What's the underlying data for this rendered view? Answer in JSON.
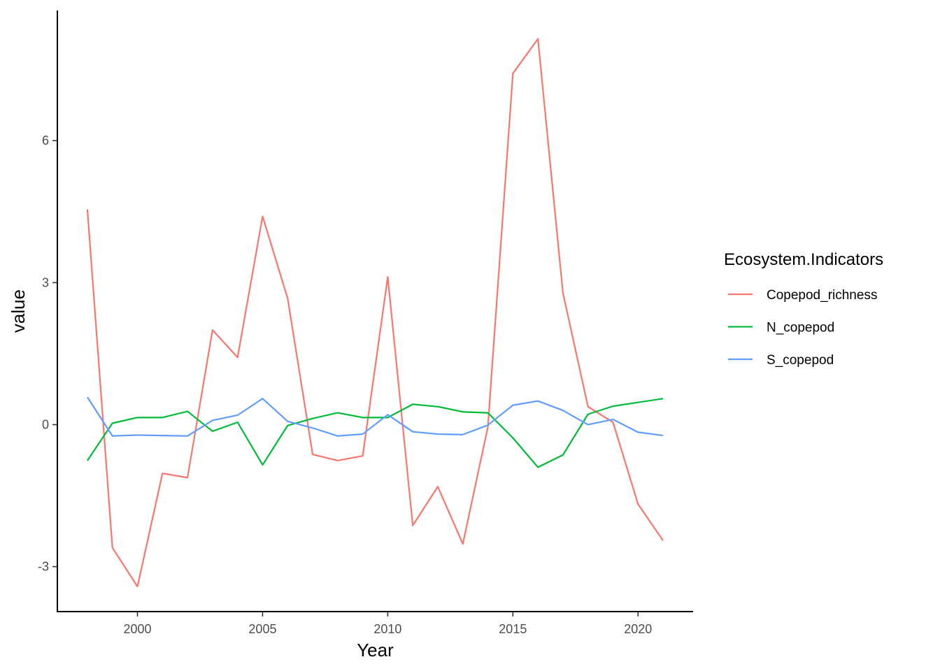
{
  "chart_data": {
    "type": "line",
    "xlabel": "Year",
    "ylabel": "value",
    "x": [
      1998,
      1999,
      2000,
      2001,
      2002,
      2003,
      2004,
      2005,
      2006,
      2007,
      2008,
      2009,
      2010,
      2011,
      2012,
      2013,
      2014,
      2015,
      2016,
      2017,
      2018,
      2019,
      2020,
      2021
    ],
    "xlim": [
      1996.8,
      2022.2
    ],
    "ylim": [
      -3.95,
      8.75
    ],
    "xticks": [
      "2000",
      "2005",
      "2010",
      "2015",
      "2020"
    ],
    "yticks": [
      "-3",
      "0",
      "3",
      "6"
    ],
    "grid": false,
    "legend": {
      "title": "Ecosystem.Indicators",
      "position": "right"
    },
    "series": [
      {
        "name": "Copepod_richness",
        "color": "#F8766D",
        "values": [
          4.55,
          -2.6,
          -3.42,
          -1.03,
          -1.12,
          2.0,
          1.42,
          4.4,
          2.67,
          -0.63,
          -0.76,
          -0.66,
          3.12,
          -2.13,
          -1.31,
          -2.52,
          -0.05,
          7.42,
          8.15,
          2.78,
          0.38,
          0.05,
          -1.68,
          -2.45
        ]
      },
      {
        "name": "N_copepod",
        "color": "#00BA38",
        "values": [
          -0.76,
          0.03,
          0.15,
          0.15,
          0.28,
          -0.14,
          0.05,
          -0.85,
          -0.02,
          0.13,
          0.25,
          0.15,
          0.15,
          0.43,
          0.38,
          0.27,
          0.25,
          -0.28,
          -0.9,
          -0.64,
          0.22,
          0.39,
          0.47,
          0.55
        ]
      },
      {
        "name": "S_copepod",
        "color": "#619CFF",
        "values": [
          0.58,
          -0.24,
          -0.22,
          -0.23,
          -0.24,
          0.09,
          0.2,
          0.55,
          0.07,
          -0.07,
          -0.24,
          -0.2,
          0.21,
          -0.15,
          -0.2,
          -0.21,
          -0.01,
          0.41,
          0.5,
          0.3,
          0.0,
          0.11,
          -0.16,
          -0.23
        ]
      }
    ]
  }
}
